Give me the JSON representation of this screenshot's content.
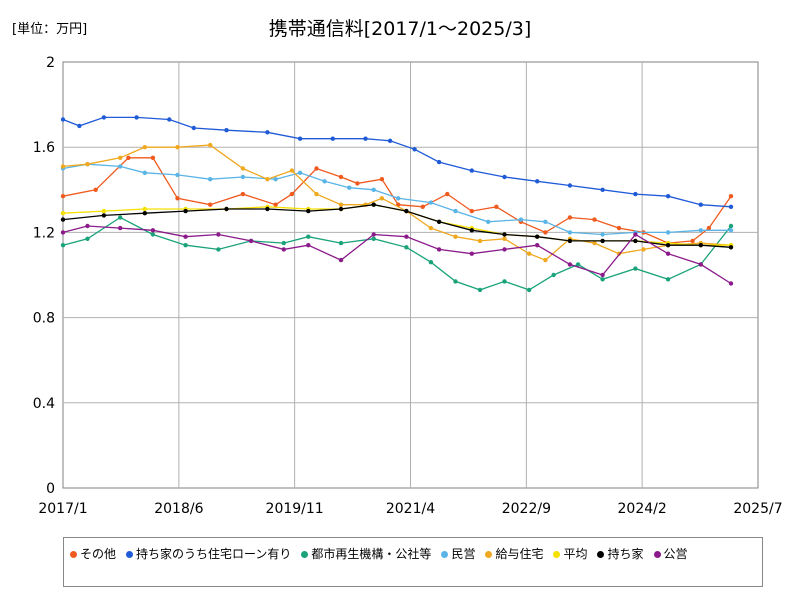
{
  "chart_data": {
    "type": "line",
    "title": "携帯通信料[2017/1～2025/3]",
    "unit_label": "[単位：万円]",
    "xlabel": "",
    "ylabel": "",
    "ylim": [
      0,
      2
    ],
    "xlim": [
      2017.0,
      2025.5
    ],
    "y_ticks": [
      0,
      0.4,
      0.8,
      1.2,
      1.6,
      2
    ],
    "y_tick_labels": [
      "0",
      "0.4",
      "0.8",
      "1.2",
      "1.6",
      "2"
    ],
    "x_ticks": [
      2017.0,
      2018.417,
      2019.833,
      2021.25,
      2022.667,
      2024.083,
      2025.5
    ],
    "x_tick_labels": [
      "2017/1",
      "2018/6",
      "2019/11",
      "2021/4",
      "2022/9",
      "2024/2",
      "2025/7"
    ],
    "grid": true,
    "legend_position": "bottom",
    "series": [
      {
        "name": "その他",
        "color": "#f05a1e",
        "points": [
          [
            2017.0,
            1.37
          ],
          [
            2017.4,
            1.4
          ],
          [
            2017.8,
            1.55
          ],
          [
            2018.1,
            1.55
          ],
          [
            2018.4,
            1.36
          ],
          [
            2018.8,
            1.33
          ],
          [
            2019.2,
            1.38
          ],
          [
            2019.6,
            1.33
          ],
          [
            2019.8,
            1.38
          ],
          [
            2020.1,
            1.5
          ],
          [
            2020.4,
            1.46
          ],
          [
            2020.6,
            1.43
          ],
          [
            2020.9,
            1.45
          ],
          [
            2021.1,
            1.33
          ],
          [
            2021.4,
            1.32
          ],
          [
            2021.7,
            1.38
          ],
          [
            2022.0,
            1.3
          ],
          [
            2022.3,
            1.32
          ],
          [
            2022.6,
            1.25
          ],
          [
            2022.9,
            1.2
          ],
          [
            2023.2,
            1.27
          ],
          [
            2023.5,
            1.26
          ],
          [
            2023.8,
            1.22
          ],
          [
            2024.1,
            1.2
          ],
          [
            2024.4,
            1.15
          ],
          [
            2024.7,
            1.16
          ],
          [
            2024.9,
            1.22
          ],
          [
            2025.17,
            1.37
          ]
        ]
      },
      {
        "name": "持ち家のうち住宅ローン有り",
        "color": "#1f5ad7",
        "points": [
          [
            2017.0,
            1.73
          ],
          [
            2017.2,
            1.7
          ],
          [
            2017.5,
            1.74
          ],
          [
            2017.9,
            1.74
          ],
          [
            2018.3,
            1.73
          ],
          [
            2018.6,
            1.69
          ],
          [
            2019.0,
            1.68
          ],
          [
            2019.5,
            1.67
          ],
          [
            2019.9,
            1.64
          ],
          [
            2020.3,
            1.64
          ],
          [
            2020.7,
            1.64
          ],
          [
            2021.0,
            1.63
          ],
          [
            2021.3,
            1.59
          ],
          [
            2021.6,
            1.53
          ],
          [
            2022.0,
            1.49
          ],
          [
            2022.4,
            1.46
          ],
          [
            2022.8,
            1.44
          ],
          [
            2023.2,
            1.42
          ],
          [
            2023.6,
            1.4
          ],
          [
            2024.0,
            1.38
          ],
          [
            2024.4,
            1.37
          ],
          [
            2024.8,
            1.33
          ],
          [
            2025.17,
            1.32
          ]
        ]
      },
      {
        "name": "都市再生機構・公社等",
        "color": "#1aa37a",
        "points": [
          [
            2017.0,
            1.14
          ],
          [
            2017.3,
            1.17
          ],
          [
            2017.7,
            1.27
          ],
          [
            2018.1,
            1.19
          ],
          [
            2018.5,
            1.14
          ],
          [
            2018.9,
            1.12
          ],
          [
            2019.3,
            1.16
          ],
          [
            2019.7,
            1.15
          ],
          [
            2020.0,
            1.18
          ],
          [
            2020.4,
            1.15
          ],
          [
            2020.8,
            1.17
          ],
          [
            2021.2,
            1.13
          ],
          [
            2021.5,
            1.06
          ],
          [
            2021.8,
            0.97
          ],
          [
            2022.1,
            0.93
          ],
          [
            2022.4,
            0.97
          ],
          [
            2022.7,
            0.93
          ],
          [
            2023.0,
            1.0
          ],
          [
            2023.3,
            1.05
          ],
          [
            2023.6,
            0.98
          ],
          [
            2024.0,
            1.03
          ],
          [
            2024.4,
            0.98
          ],
          [
            2024.8,
            1.05
          ],
          [
            2025.17,
            1.23
          ]
        ]
      },
      {
        "name": "民営",
        "color": "#5ab4e6",
        "points": [
          [
            2017.0,
            1.5
          ],
          [
            2017.3,
            1.52
          ],
          [
            2017.7,
            1.51
          ],
          [
            2018.0,
            1.48
          ],
          [
            2018.4,
            1.47
          ],
          [
            2018.8,
            1.45
          ],
          [
            2019.2,
            1.46
          ],
          [
            2019.6,
            1.45
          ],
          [
            2019.9,
            1.48
          ],
          [
            2020.2,
            1.44
          ],
          [
            2020.5,
            1.41
          ],
          [
            2020.8,
            1.4
          ],
          [
            2021.1,
            1.36
          ],
          [
            2021.5,
            1.34
          ],
          [
            2021.8,
            1.3
          ],
          [
            2022.2,
            1.25
          ],
          [
            2022.6,
            1.26
          ],
          [
            2022.9,
            1.25
          ],
          [
            2023.2,
            1.2
          ],
          [
            2023.6,
            1.19
          ],
          [
            2024.0,
            1.2
          ],
          [
            2024.4,
            1.2
          ],
          [
            2024.8,
            1.21
          ],
          [
            2025.17,
            1.21
          ]
        ]
      },
      {
        "name": "給与住宅",
        "color": "#f0a81e",
        "points": [
          [
            2017.0,
            1.51
          ],
          [
            2017.3,
            1.52
          ],
          [
            2017.7,
            1.55
          ],
          [
            2018.0,
            1.6
          ],
          [
            2018.4,
            1.6
          ],
          [
            2018.8,
            1.61
          ],
          [
            2019.2,
            1.5
          ],
          [
            2019.5,
            1.45
          ],
          [
            2019.8,
            1.49
          ],
          [
            2020.1,
            1.38
          ],
          [
            2020.4,
            1.33
          ],
          [
            2020.7,
            1.33
          ],
          [
            2020.9,
            1.36
          ],
          [
            2021.2,
            1.3
          ],
          [
            2021.5,
            1.22
          ],
          [
            2021.8,
            1.18
          ],
          [
            2022.1,
            1.16
          ],
          [
            2022.4,
            1.17
          ],
          [
            2022.7,
            1.1
          ],
          [
            2022.9,
            1.07
          ],
          [
            2023.2,
            1.17
          ],
          [
            2023.5,
            1.15
          ],
          [
            2023.8,
            1.1
          ],
          [
            2024.1,
            1.12
          ],
          [
            2024.4,
            1.14
          ],
          [
            2024.8,
            1.15
          ],
          [
            2025.17,
            1.14
          ]
        ]
      },
      {
        "name": "平均",
        "color": "#f5e000",
        "points": [
          [
            2017.0,
            1.29
          ],
          [
            2017.5,
            1.3
          ],
          [
            2018.0,
            1.31
          ],
          [
            2018.5,
            1.31
          ],
          [
            2019.0,
            1.31
          ],
          [
            2019.5,
            1.32
          ],
          [
            2020.0,
            1.31
          ],
          [
            2020.4,
            1.31
          ],
          [
            2020.8,
            1.33
          ],
          [
            2021.2,
            1.3
          ],
          [
            2021.6,
            1.25
          ],
          [
            2022.0,
            1.22
          ],
          [
            2022.4,
            1.19
          ],
          [
            2022.8,
            1.18
          ],
          [
            2023.2,
            1.16
          ],
          [
            2023.6,
            1.16
          ],
          [
            2024.0,
            1.16
          ],
          [
            2024.4,
            1.15
          ],
          [
            2024.8,
            1.14
          ],
          [
            2025.17,
            1.14
          ]
        ]
      },
      {
        "name": "持ち家",
        "color": "#000000",
        "points": [
          [
            2017.0,
            1.26
          ],
          [
            2017.5,
            1.28
          ],
          [
            2018.0,
            1.29
          ],
          [
            2018.5,
            1.3
          ],
          [
            2019.0,
            1.31
          ],
          [
            2019.5,
            1.31
          ],
          [
            2020.0,
            1.3
          ],
          [
            2020.4,
            1.31
          ],
          [
            2020.8,
            1.33
          ],
          [
            2021.2,
            1.3
          ],
          [
            2021.6,
            1.25
          ],
          [
            2022.0,
            1.21
          ],
          [
            2022.4,
            1.19
          ],
          [
            2022.8,
            1.18
          ],
          [
            2023.2,
            1.16
          ],
          [
            2023.6,
            1.16
          ],
          [
            2024.0,
            1.16
          ],
          [
            2024.4,
            1.14
          ],
          [
            2024.8,
            1.14
          ],
          [
            2025.17,
            1.13
          ]
        ]
      },
      {
        "name": "公営",
        "color": "#8b1a8b",
        "points": [
          [
            2017.0,
            1.2
          ],
          [
            2017.3,
            1.23
          ],
          [
            2017.7,
            1.22
          ],
          [
            2018.1,
            1.21
          ],
          [
            2018.5,
            1.18
          ],
          [
            2018.9,
            1.19
          ],
          [
            2019.3,
            1.16
          ],
          [
            2019.7,
            1.12
          ],
          [
            2020.0,
            1.14
          ],
          [
            2020.4,
            1.07
          ],
          [
            2020.8,
            1.19
          ],
          [
            2021.2,
            1.18
          ],
          [
            2021.6,
            1.12
          ],
          [
            2022.0,
            1.1
          ],
          [
            2022.4,
            1.12
          ],
          [
            2022.8,
            1.14
          ],
          [
            2023.2,
            1.05
          ],
          [
            2023.6,
            1.0
          ],
          [
            2024.0,
            1.19
          ],
          [
            2024.4,
            1.1
          ],
          [
            2024.8,
            1.05
          ],
          [
            2025.17,
            0.96
          ]
        ]
      }
    ]
  }
}
